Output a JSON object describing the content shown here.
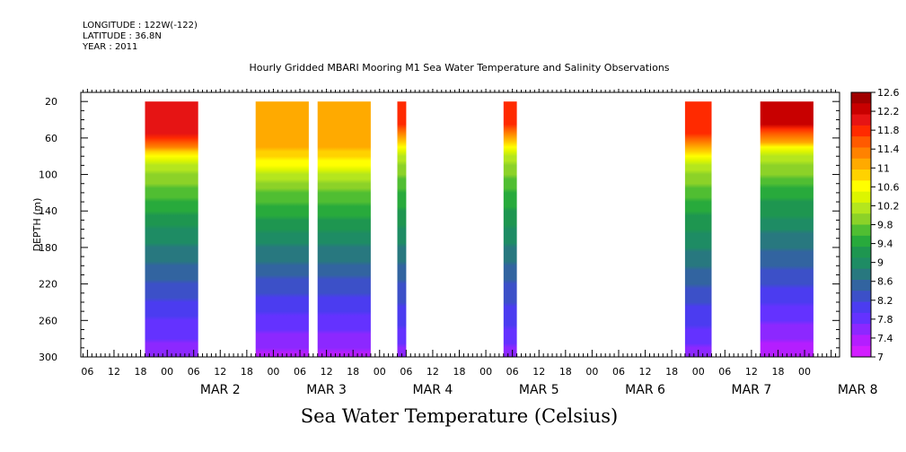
{
  "header": {
    "longitude": "LONGITUDE : 122W(-122)",
    "latitude": "LATITUDE : 36.8N",
    "year": "YEAR : 2011"
  },
  "chart_data": {
    "type": "heatmap",
    "title": "Hourly Gridded MBARI Mooring M1 Sea Water Temperature and Salinity Observations",
    "xlabel": "Sea Water Temperature (Celsius)",
    "ylabel": "DEPTH (m)",
    "y_axis": {
      "range": [
        300,
        10
      ],
      "inverted": true,
      "tick_labels": [
        "20",
        "60",
        "100",
        "140",
        "180",
        "220",
        "260",
        "300"
      ]
    },
    "x_axis": {
      "hour_tick_labels": [
        "06",
        "12",
        "18",
        "00",
        "06",
        "12",
        "18",
        "00",
        "06",
        "12",
        "18",
        "00",
        "06",
        "12",
        "18",
        "00",
        "06",
        "12",
        "18",
        "00",
        "06",
        "12",
        "18",
        "00",
        "06",
        "12",
        "18",
        "00"
      ],
      "day_labels": [
        "MAR  2",
        "MAR  3",
        "MAR  4",
        "MAR  5",
        "MAR  6",
        "MAR  7",
        "MAR  8"
      ]
    },
    "colorbar": {
      "levels": [
        "12.6",
        "12.2",
        "11.8",
        "11.4",
        "11",
        "10.6",
        "10.2",
        "9.8",
        "9.4",
        "9",
        "8.6",
        "8.2",
        "7.8",
        "7.4",
        "7"
      ],
      "colors": [
        "#a00000",
        "#c80000",
        "#e61414",
        "#ff2a00",
        "#ff5a00",
        "#ff8200",
        "#ffaa00",
        "#ffd200",
        "#ffff00",
        "#dcf500",
        "#b4e61e",
        "#8cd228",
        "#50be32",
        "#28aa3c",
        "#1e9650",
        "#1e8c64",
        "#28787f",
        "#3264a0",
        "#3c50c8",
        "#4b3cf0",
        "#6432ff",
        "#8c28ff",
        "#b41eff",
        "#d21eff"
      ]
    },
    "series": [
      {
        "start": "MAR 1 19:00",
        "end": "MAR 2 07:00",
        "surface_temp": 12.0,
        "thermocline_depth_m": 70,
        "temp_at_300m": 7.5
      },
      {
        "start": "MAR 2 20:00",
        "end": "MAR 3 08:00",
        "surface_temp": 11.2,
        "thermocline_depth_m": 80,
        "temp_at_300m": 7.4
      },
      {
        "start": "MAR 3 10:00",
        "end": "MAR 3 22:00",
        "surface_temp": 11.2,
        "thermocline_depth_m": 80,
        "temp_at_300m": 7.4
      },
      {
        "start": "MAR 4 04:00",
        "end": "MAR 4 06:00",
        "surface_temp": 11.8,
        "thermocline_depth_m": 60,
        "temp_at_300m": 7.6
      },
      {
        "start": "MAR 5 04:00",
        "end": "MAR 5 07:00",
        "surface_temp": 11.8,
        "thermocline_depth_m": 60,
        "temp_at_300m": 7.6
      },
      {
        "start": "MAR 6 21:00",
        "end": "MAR 7 03:00",
        "surface_temp": 11.8,
        "thermocline_depth_m": 70,
        "temp_at_300m": 7.6
      },
      {
        "start": "MAR 7 14:00",
        "end": "MAR 8 02:00",
        "surface_temp": 12.2,
        "thermocline_depth_m": 60,
        "temp_at_300m": 7.3
      }
    ]
  }
}
